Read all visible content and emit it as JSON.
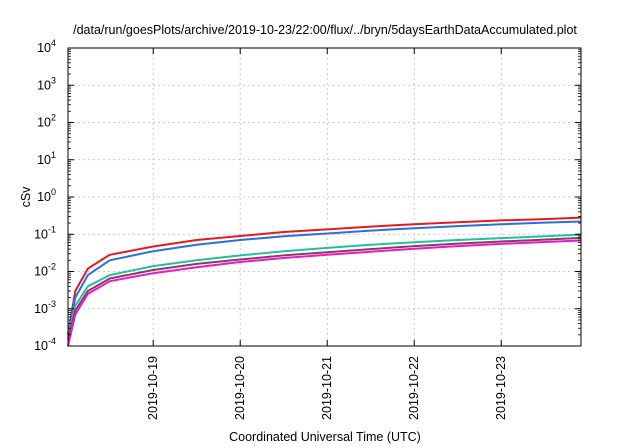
{
  "chart_data": {
    "type": "line",
    "title": "/data/run/goesPlots/archive/2019-10-23/22:00/flux/../bryn/5daysEarthDataAccumulated.plot",
    "xlabel": "Coordinated Universal Time (UTC)",
    "ylabel": "cSv",
    "y_scale": "log",
    "ylim": [
      0.0001,
      10000
    ],
    "xlim": [
      "2019-10-18 00:30",
      "2019-10-23 22:00"
    ],
    "y_ticks": [
      {
        "base": "10",
        "exp": "-4",
        "value": 0.0001
      },
      {
        "base": "10",
        "exp": "-3",
        "value": 0.001
      },
      {
        "base": "10",
        "exp": "-2",
        "value": 0.01
      },
      {
        "base": "10",
        "exp": "-1",
        "value": 0.1
      },
      {
        "base": "10",
        "exp": "0",
        "value": 1
      },
      {
        "base": "10",
        "exp": "1",
        "value": 10
      },
      {
        "base": "10",
        "exp": "2",
        "value": 100
      },
      {
        "base": "10",
        "exp": "3",
        "value": 1000
      },
      {
        "base": "10",
        "exp": "4",
        "value": 10000
      }
    ],
    "x_ticks": [
      "2019-10-19",
      "2019-10-20",
      "2019-10-21",
      "2019-10-22",
      "2019-10-23"
    ],
    "grid": true,
    "legend": "none",
    "x": [
      "2019-10-18 00:30",
      "2019-10-18 02:30",
      "2019-10-18 06:00",
      "2019-10-18 12:00",
      "2019-10-19 00:00",
      "2019-10-19 12:00",
      "2019-10-20 00:00",
      "2019-10-20 12:00",
      "2019-10-21 00:00",
      "2019-10-21 12:00",
      "2019-10-22 00:00",
      "2019-10-22 12:00",
      "2019-10-23 00:00",
      "2019-10-23 12:00",
      "2019-10-23 22:00"
    ],
    "series": [
      {
        "color": "#e41a1c",
        "values": [
          0.0002,
          0.003,
          0.012,
          0.028,
          0.047,
          0.07,
          0.09,
          0.115,
          0.135,
          0.16,
          0.185,
          0.21,
          0.235,
          0.255,
          0.28
        ]
      },
      {
        "color": "#2a6fe0",
        "values": [
          0.0002,
          0.002,
          0.008,
          0.02,
          0.035,
          0.052,
          0.07,
          0.088,
          0.105,
          0.125,
          0.145,
          0.165,
          0.185,
          0.205,
          0.22
        ]
      },
      {
        "color": "#22c0a0",
        "values": [
          0.0002,
          0.0012,
          0.004,
          0.008,
          0.014,
          0.02,
          0.027,
          0.035,
          0.043,
          0.052,
          0.061,
          0.07,
          0.079,
          0.088,
          0.098
        ]
      },
      {
        "color": "#8a3a6a",
        "values": [
          0.00015,
          0.0009,
          0.003,
          0.0065,
          0.011,
          0.016,
          0.021,
          0.027,
          0.033,
          0.04,
          0.048,
          0.056,
          0.064,
          0.072,
          0.08
        ]
      },
      {
        "color": "#e81ac8",
        "values": [
          0.0001,
          0.0007,
          0.0025,
          0.0055,
          0.009,
          0.013,
          0.018,
          0.023,
          0.028,
          0.034,
          0.041,
          0.048,
          0.055,
          0.062,
          0.068
        ]
      }
    ]
  }
}
